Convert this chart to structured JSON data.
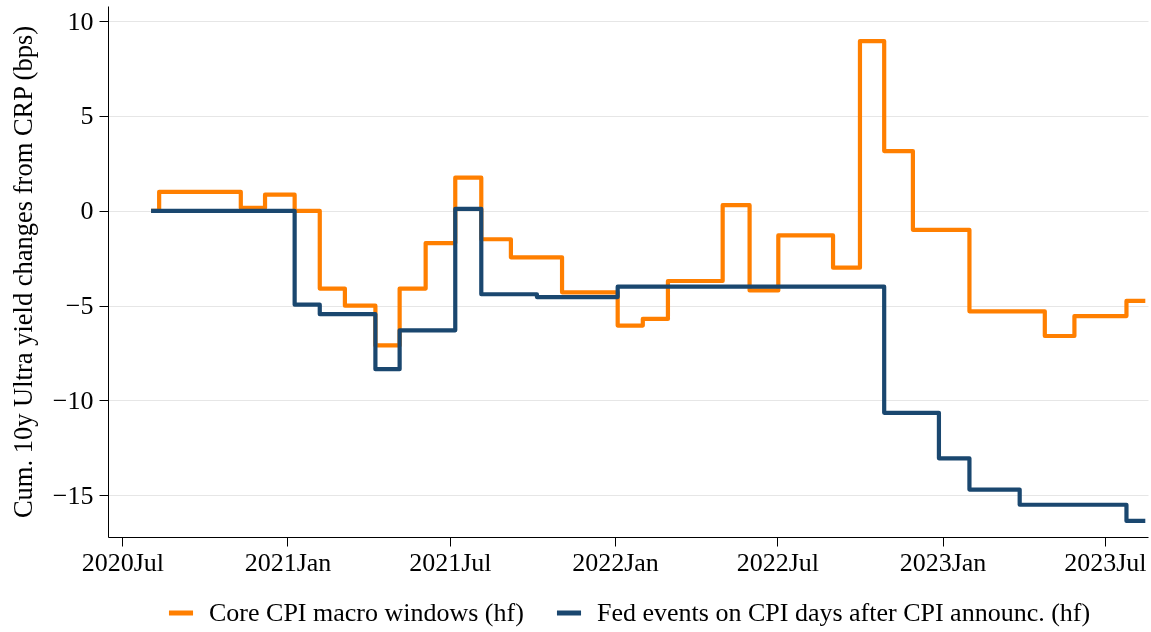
{
  "chart_data": {
    "type": "step",
    "ylabel": "Cum. 10y Ultra yield changes from CRP (bps)",
    "series": [
      {
        "name": "Core CPI macro windows (hf)",
        "color": "#ff7f00",
        "x": [
          "2020-08-02",
          "2020-08-11",
          "2020-11-10",
          "2020-12-07",
          "2021-01-09",
          "2021-02-06",
          "2021-03-06",
          "2021-04-09",
          "2021-05-06",
          "2021-06-04",
          "2021-07-07",
          "2021-08-05",
          "2021-09-07",
          "2021-11-03",
          "2022-01-04",
          "2022-02-01",
          "2022-03-01",
          "2022-05-01",
          "2022-05-31",
          "2022-07-02",
          "2022-09-01",
          "2022-10-01",
          "2022-10-28",
          "2022-11-29",
          "2023-01-31",
          "2023-04-25",
          "2023-05-28",
          "2023-07-25",
          "2023-08-15"
        ],
        "values": [
          0,
          1.0,
          0.15,
          0.85,
          0,
          -4.1,
          -5.0,
          -7.1,
          -4.1,
          -1.7,
          1.75,
          -1.5,
          -2.45,
          -4.3,
          -6.05,
          -5.7,
          -3.7,
          0.3,
          -4.2,
          -1.3,
          -3.0,
          8.95,
          3.15,
          -1.0,
          -5.3,
          -6.6,
          -5.55,
          -4.75,
          -4.75
        ]
      },
      {
        "name": "Fed events on CPI days after CPI announc. (hf)",
        "color": "#1a476f",
        "x": [
          "2020-08-02",
          "2021-01-09",
          "2021-02-06",
          "2021-04-09",
          "2021-05-06",
          "2021-07-07",
          "2021-08-05",
          "2021-10-06",
          "2022-01-04",
          "2022-10-28",
          "2022-12-28",
          "2023-01-31",
          "2023-03-28",
          "2023-07-25",
          "2023-08-15"
        ],
        "values": [
          0,
          -4.95,
          -5.45,
          -8.35,
          -6.3,
          0.1,
          -4.4,
          -4.55,
          -4.0,
          -10.65,
          -13.05,
          -14.7,
          -15.5,
          -16.35,
          -16.35
        ]
      }
    ],
    "xlim": [
      "2020-06-15",
      "2023-08-18"
    ],
    "xticks": [
      {
        "value": "2020-07-01",
        "label": "2020Jul"
      },
      {
        "value": "2021-01-01",
        "label": "2021Jan"
      },
      {
        "value": "2021-07-01",
        "label": "2021Jul"
      },
      {
        "value": "2022-01-01",
        "label": "2022Jan"
      },
      {
        "value": "2022-07-01",
        "label": "2022Jul"
      },
      {
        "value": "2023-01-01",
        "label": "2023Jan"
      },
      {
        "value": "2023-07-01",
        "label": "2023Jul"
      }
    ],
    "ylim": [
      -17.2,
      10.8
    ],
    "yticks": [
      10,
      5,
      0,
      -5,
      -10,
      -15
    ],
    "grid": "y",
    "legend": "bottom"
  }
}
